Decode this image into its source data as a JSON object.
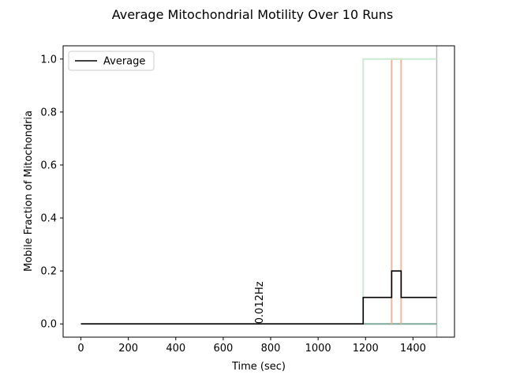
{
  "chart_data": {
    "type": "line",
    "title": "Average Mitochondrial Motility Over 10 Runs",
    "xlabel": "Time (sec)",
    "ylabel": "Mobile Fraction of Mitochondria",
    "xlim": [
      -75,
      1575
    ],
    "ylim": [
      -0.05,
      1.05
    ],
    "xticks": [
      0,
      200,
      400,
      600,
      800,
      1000,
      1200,
      1400
    ],
    "xtick_labels": [
      "0",
      "200",
      "400",
      "600",
      "800",
      "1000",
      "1200",
      "1400"
    ],
    "yticks": [
      0.0,
      0.2,
      0.4,
      0.6,
      0.8,
      1.0
    ],
    "ytick_labels": [
      "0.0",
      "0.2",
      "0.4",
      "0.6",
      "0.8",
      "1.0"
    ],
    "grid": false,
    "legend": {
      "placement": "upper-left",
      "entries": [
        "Average"
      ]
    },
    "annotations": [
      {
        "text": "0.012Hz",
        "x": 780,
        "y": 0.0,
        "rotation": -90
      }
    ],
    "vertical_lines": [
      {
        "x": 1500,
        "color": "#bbbbbb"
      }
    ],
    "series": [
      {
        "name": "Average",
        "color": "#000000",
        "step": true,
        "x": [
          0,
          1190,
          1190,
          1310,
          1310,
          1350,
          1350,
          1500
        ],
        "y": [
          0.0,
          0.0,
          0.1,
          0.1,
          0.2,
          0.2,
          0.1,
          0.1
        ]
      },
      {
        "color": "#c8ecd2",
        "step": true,
        "x": [
          1190,
          1190,
          1500
        ],
        "y": [
          0.0,
          1.0,
          1.0
        ]
      },
      {
        "color": "#f6b59a",
        "step": true,
        "x": [
          1310,
          1310,
          1350,
          1350
        ],
        "y": [
          0.0,
          1.0,
          1.0,
          0.0
        ]
      },
      {
        "color": "#7fa89a",
        "step": true,
        "x": [
          1190,
          1500
        ],
        "y": [
          0.0,
          0.0
        ]
      }
    ]
  }
}
